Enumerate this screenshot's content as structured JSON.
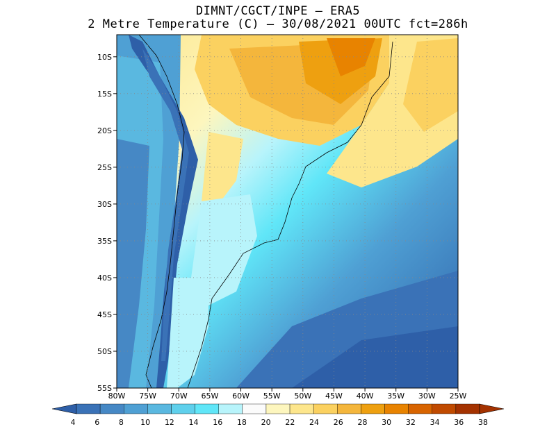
{
  "title": {
    "line1": "DIMNT/CGCT/INPE –  ERA5",
    "line2": "2 Metre Temperature (C) –  30/08/2021 00UTC fct=286h"
  },
  "map": {
    "lon_range": [
      -80,
      -25
    ],
    "lat_range": [
      -55,
      -7
    ],
    "lon_ticks": [
      "80W",
      "75W",
      "70W",
      "65W",
      "60W",
      "55W",
      "50W",
      "45W",
      "40W",
      "35W",
      "30W",
      "25W"
    ],
    "lat_ticks": [
      "10S",
      "15S",
      "20S",
      "25S",
      "30S",
      "35S",
      "40S",
      "45S",
      "50S",
      "55S"
    ],
    "grid": "dotted"
  },
  "colorbar": {
    "labels": [
      "4",
      "6",
      "8",
      "10",
      "12",
      "14",
      "16",
      "18",
      "20",
      "22",
      "24",
      "26",
      "28",
      "30",
      "32",
      "34",
      "36",
      "38"
    ],
    "colors": [
      "#2e5fa8",
      "#3a72b7",
      "#4688c5",
      "#4fa0d4",
      "#5ab8e0",
      "#5fd0ec",
      "#60e6f8",
      "#b8f4fb",
      "#fbfbfb",
      "#fdf6be",
      "#fde68c",
      "#fbd160",
      "#f4b63c",
      "#eea010",
      "#e88300",
      "#d86400",
      "#c04a00",
      "#a43200"
    ]
  }
}
